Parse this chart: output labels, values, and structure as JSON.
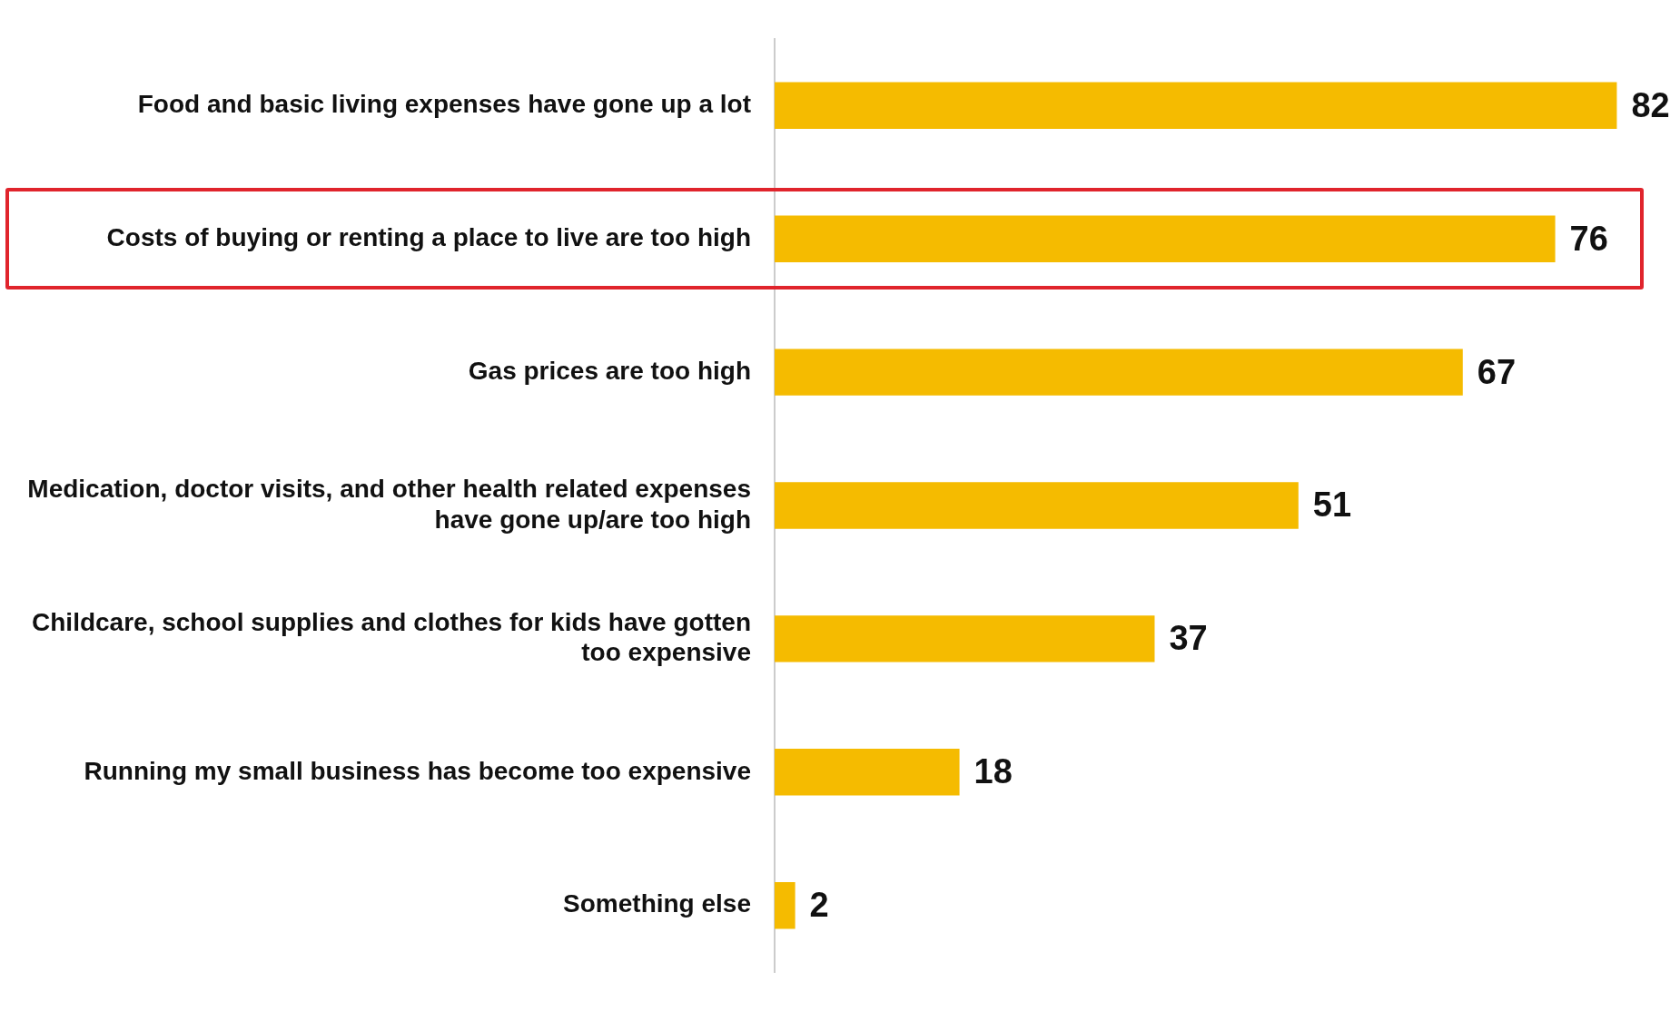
{
  "chart_data": {
    "type": "bar",
    "orientation": "horizontal",
    "categories": [
      "Food and basic living expenses have gone up a lot",
      "Costs of buying or renting a place to live are too high",
      "Gas prices are too high",
      "Medication, doctor visits, and other health related expenses have gone up/are too high",
      "Childcare, school supplies and clothes for kids have gotten too expensive",
      "Running my small business has become too expensive",
      "Something else"
    ],
    "values": [
      82,
      76,
      67,
      51,
      37,
      18,
      2
    ],
    "color": "#f5bb00",
    "data_labels": true,
    "grid": false,
    "legend": false,
    "tick_labels": "y"
  }
}
